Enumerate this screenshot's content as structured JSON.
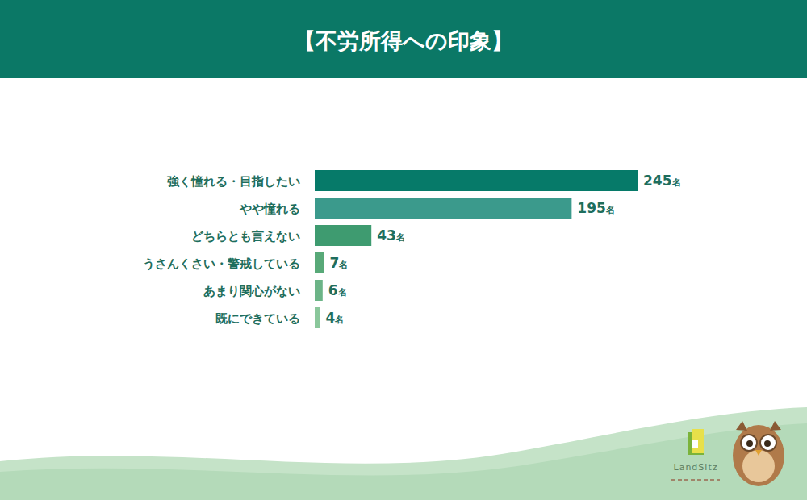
{
  "chart_data": {
    "type": "bar",
    "title": "【不労所得への印象】",
    "orientation": "horizontal",
    "categories": [
      "強く憧れる・目指したい",
      "やや憧れる",
      "どちらとも言えない",
      "うさんくさい・警戒している",
      "あまり関心がない",
      "既にできている"
    ],
    "values": [
      245,
      195,
      43,
      7,
      6,
      4
    ],
    "value_labels": [
      "245名",
      "195名",
      "43名",
      "7名",
      "6名",
      "4名"
    ],
    "colors": [
      "#067a69",
      "#3b9a8c",
      "#3e9b70",
      "#58a978",
      "#6cb487",
      "#8ac79b"
    ],
    "xlim": [
      0,
      245
    ],
    "data_labels": true,
    "tick_labels": "y",
    "grid": false
  },
  "brand": "LandSitz"
}
